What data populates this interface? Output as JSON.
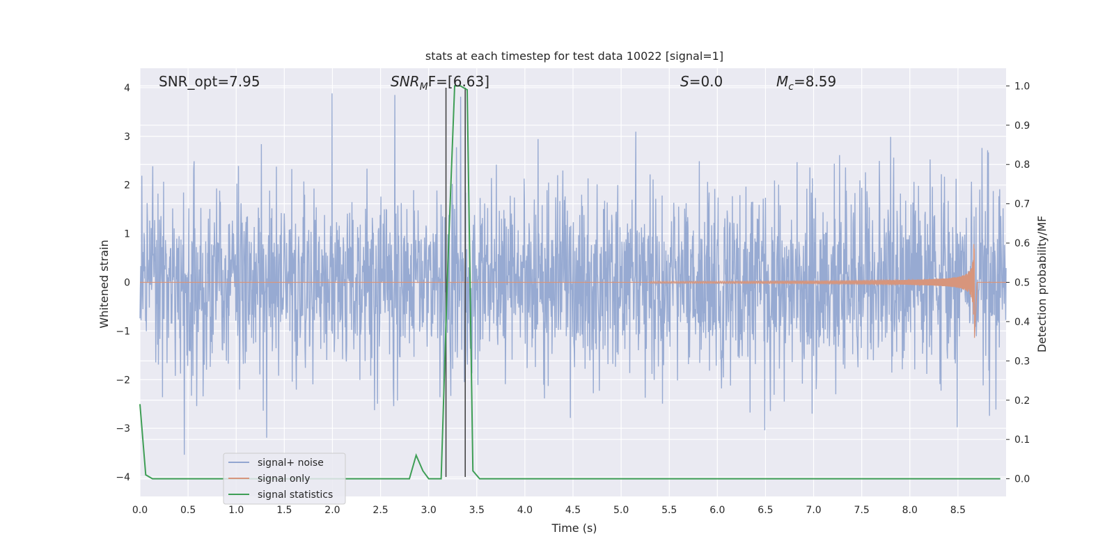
{
  "chart_data": {
    "type": "line",
    "title": "stats at each timestep for test data 10022 [signal=1]",
    "xlabel": "Time (s)",
    "ylabel": "Whitened strain",
    "ylabel_right": "Detection probability/MF",
    "xlim": [
      0.0,
      9.0
    ],
    "ylim": [
      -4.4,
      4.4
    ],
    "ylim_right": [
      -0.045,
      1.045
    ],
    "x_ticks": [
      "0.0",
      "0.5",
      "1.0",
      "1.5",
      "2.0",
      "2.5",
      "3.0",
      "3.5",
      "4.0",
      "4.5",
      "5.0",
      "5.5",
      "6.0",
      "6.5",
      "7.0",
      "7.5",
      "8.0",
      "8.5"
    ],
    "y_ticks": [
      "−4",
      "−3",
      "−2",
      "−1",
      "0",
      "1",
      "2",
      "3",
      "4"
    ],
    "y_right_ticks": [
      "0.0",
      "0.1",
      "0.2",
      "0.3",
      "0.4",
      "0.5",
      "0.6",
      "0.7",
      "0.8",
      "0.9",
      "1.0"
    ],
    "grid": true,
    "legend_position": "lower-left",
    "annotations": {
      "snr_opt": "SNR_opt=7.95",
      "snr_mf_main": "SNR",
      "snr_mf_sub": "M",
      "snr_mf_rest": "F=[6.63]",
      "s_main": "S",
      "s_rest": "=0.0",
      "mc_main": "M",
      "mc_sub": "c",
      "mc_rest": "=8.59"
    },
    "vertical_lines_x": [
      3.18,
      3.38
    ],
    "series": [
      {
        "name": "signal+ noise",
        "color": "#92a6d0",
        "description_axis": "left",
        "envelope": {
          "typical_abs": 1.5,
          "max": 4.0,
          "min": -4.0,
          "sample_rate_hz": 256
        }
      },
      {
        "name": "signal only",
        "color": "#d7957c",
        "description_axis": "left",
        "chirp": {
          "start_x": 5.3,
          "peak_x": 8.67,
          "peak_amp": 0.8,
          "end_x": 8.7
        }
      },
      {
        "name": "signal statistics",
        "color": "#3e9e55",
        "description_axis": "right",
        "points": [
          [
            0.0,
            0.19
          ],
          [
            0.06,
            0.01
          ],
          [
            0.13,
            0.0
          ],
          [
            0.5,
            0.0
          ],
          [
            1.0,
            0.0
          ],
          [
            1.5,
            0.0
          ],
          [
            2.0,
            0.0
          ],
          [
            2.5,
            0.0
          ],
          [
            2.8,
            0.0
          ],
          [
            2.87,
            0.06
          ],
          [
            2.94,
            0.02
          ],
          [
            3.0,
            0.0
          ],
          [
            3.07,
            0.0
          ],
          [
            3.13,
            0.0
          ],
          [
            3.2,
            0.55
          ],
          [
            3.27,
            1.0
          ],
          [
            3.33,
            1.0
          ],
          [
            3.4,
            0.99
          ],
          [
            3.46,
            0.02
          ],
          [
            3.53,
            0.0
          ],
          [
            4.0,
            0.0
          ],
          [
            5.0,
            0.0
          ],
          [
            6.0,
            0.0
          ],
          [
            7.0,
            0.0
          ],
          [
            8.0,
            0.0
          ],
          [
            8.94,
            0.0
          ]
        ]
      }
    ]
  },
  "colors": {
    "plot_bg": "#eaeaf2",
    "grid": "#ffffff",
    "vline": "#444444"
  }
}
